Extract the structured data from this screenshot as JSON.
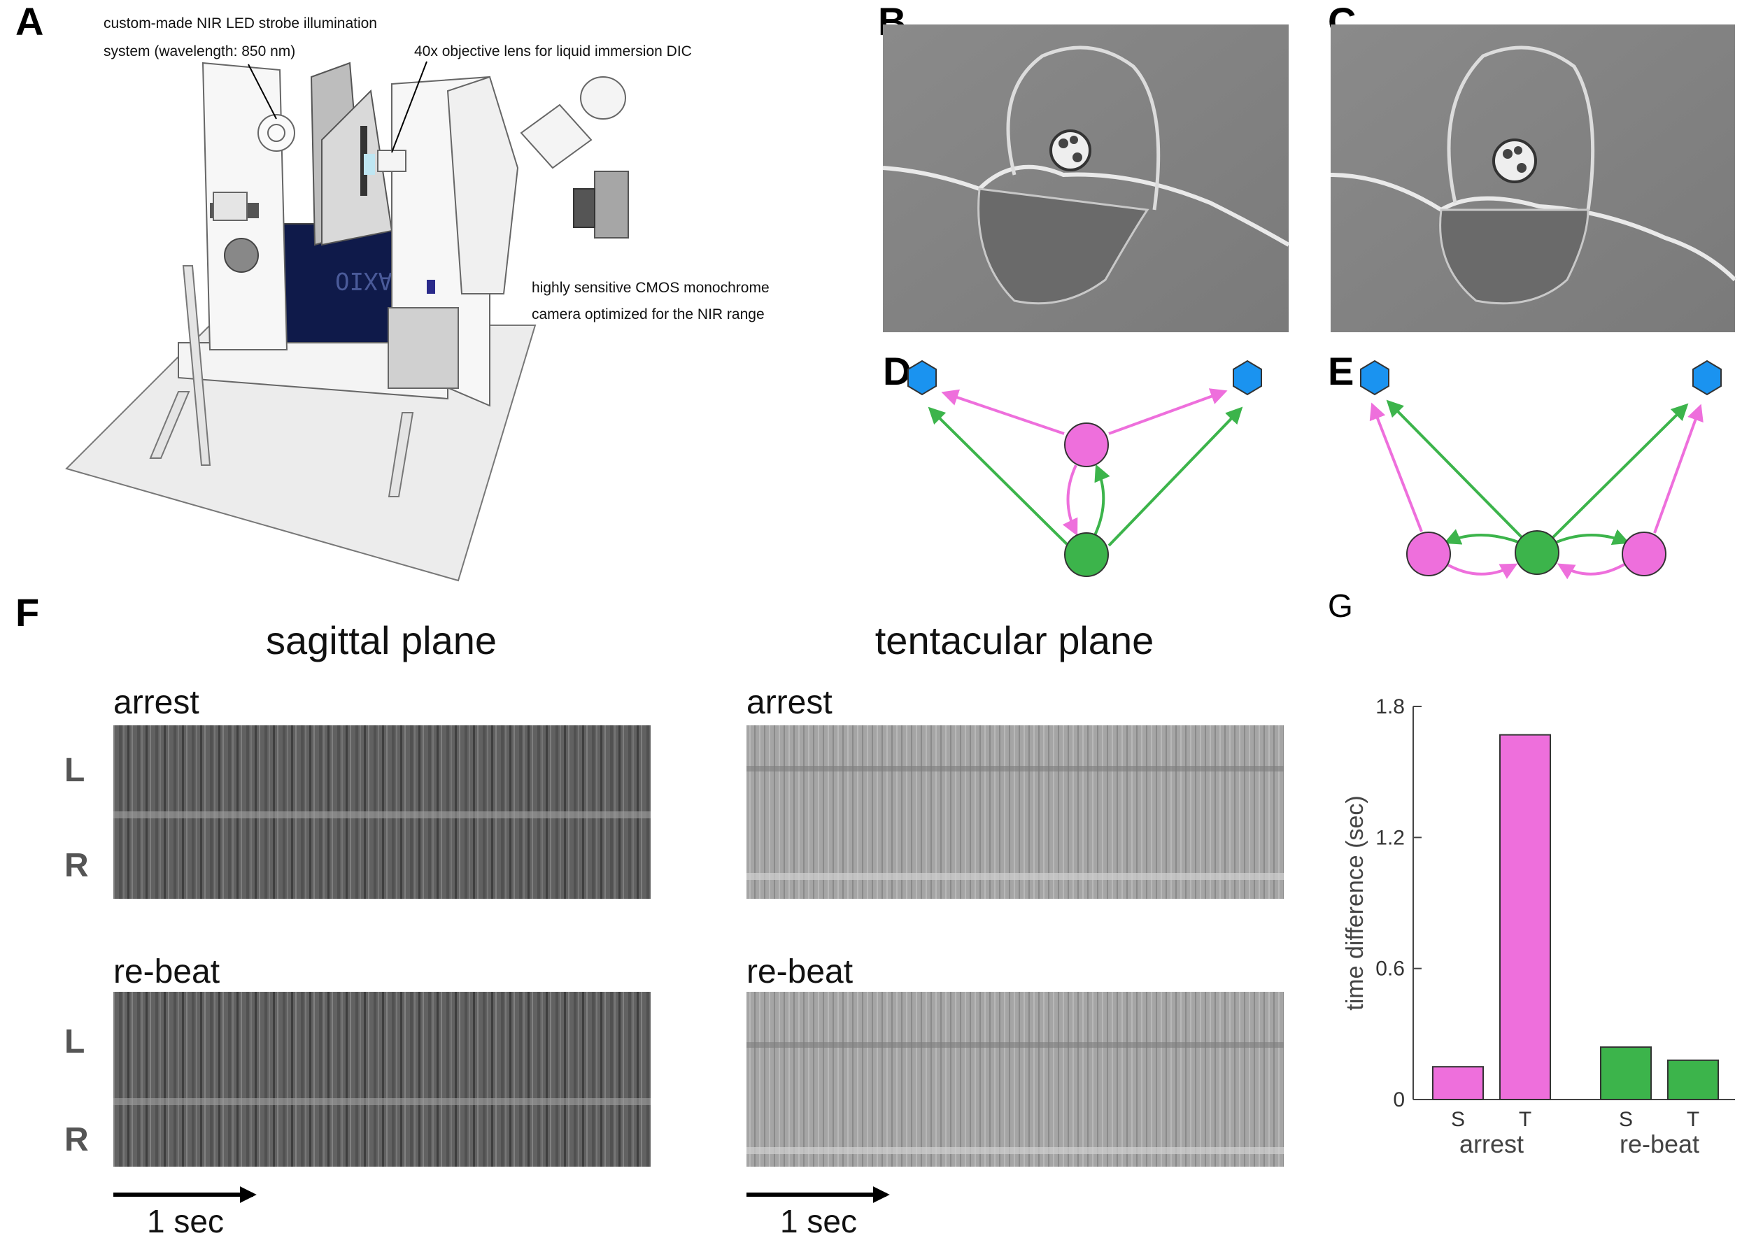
{
  "panels": {
    "A": "A",
    "B": "B",
    "C": "C",
    "D": "D",
    "E": "E",
    "F": "F",
    "G": "G"
  },
  "panelA": {
    "ann_led_line1": "custom-made NIR LED strobe illumination",
    "ann_led_line2": "system (wavelength: 850 nm)",
    "ann_objective": "40x objective lens for liquid immersion DIC",
    "ann_camera_line1": "highly sensitive CMOS monochrome",
    "ann_camera_line2": "camera optimized for the NIR range",
    "brand": "AXIO"
  },
  "panelF": {
    "sagittal_title": "sagittal plane",
    "tentacular_title": "tentacular plane",
    "arrest": "arrest",
    "rebeat": "re-beat",
    "L": "L",
    "R": "R",
    "scalebar": "1 sec"
  },
  "colors": {
    "magenta": "#ee6fdc",
    "green": "#3cb44b",
    "blue": "#1a93f0"
  },
  "chart_data": {
    "type": "bar",
    "ylabel": "time difference (sec)",
    "ylim": [
      0,
      1.8
    ],
    "yticks": [
      0,
      0.6,
      1.2,
      1.8
    ],
    "ytick_labels": [
      "0",
      "0.6",
      "1.2",
      "1.8"
    ],
    "groups": [
      {
        "name": "arrest",
        "categories": [
          "S",
          "T"
        ],
        "values": [
          0.15,
          1.67
        ],
        "color": "#ee6fdc"
      },
      {
        "name": "re-beat",
        "categories": [
          "S",
          "T"
        ],
        "values": [
          0.24,
          0.18
        ],
        "color": "#3cb44b"
      }
    ]
  }
}
